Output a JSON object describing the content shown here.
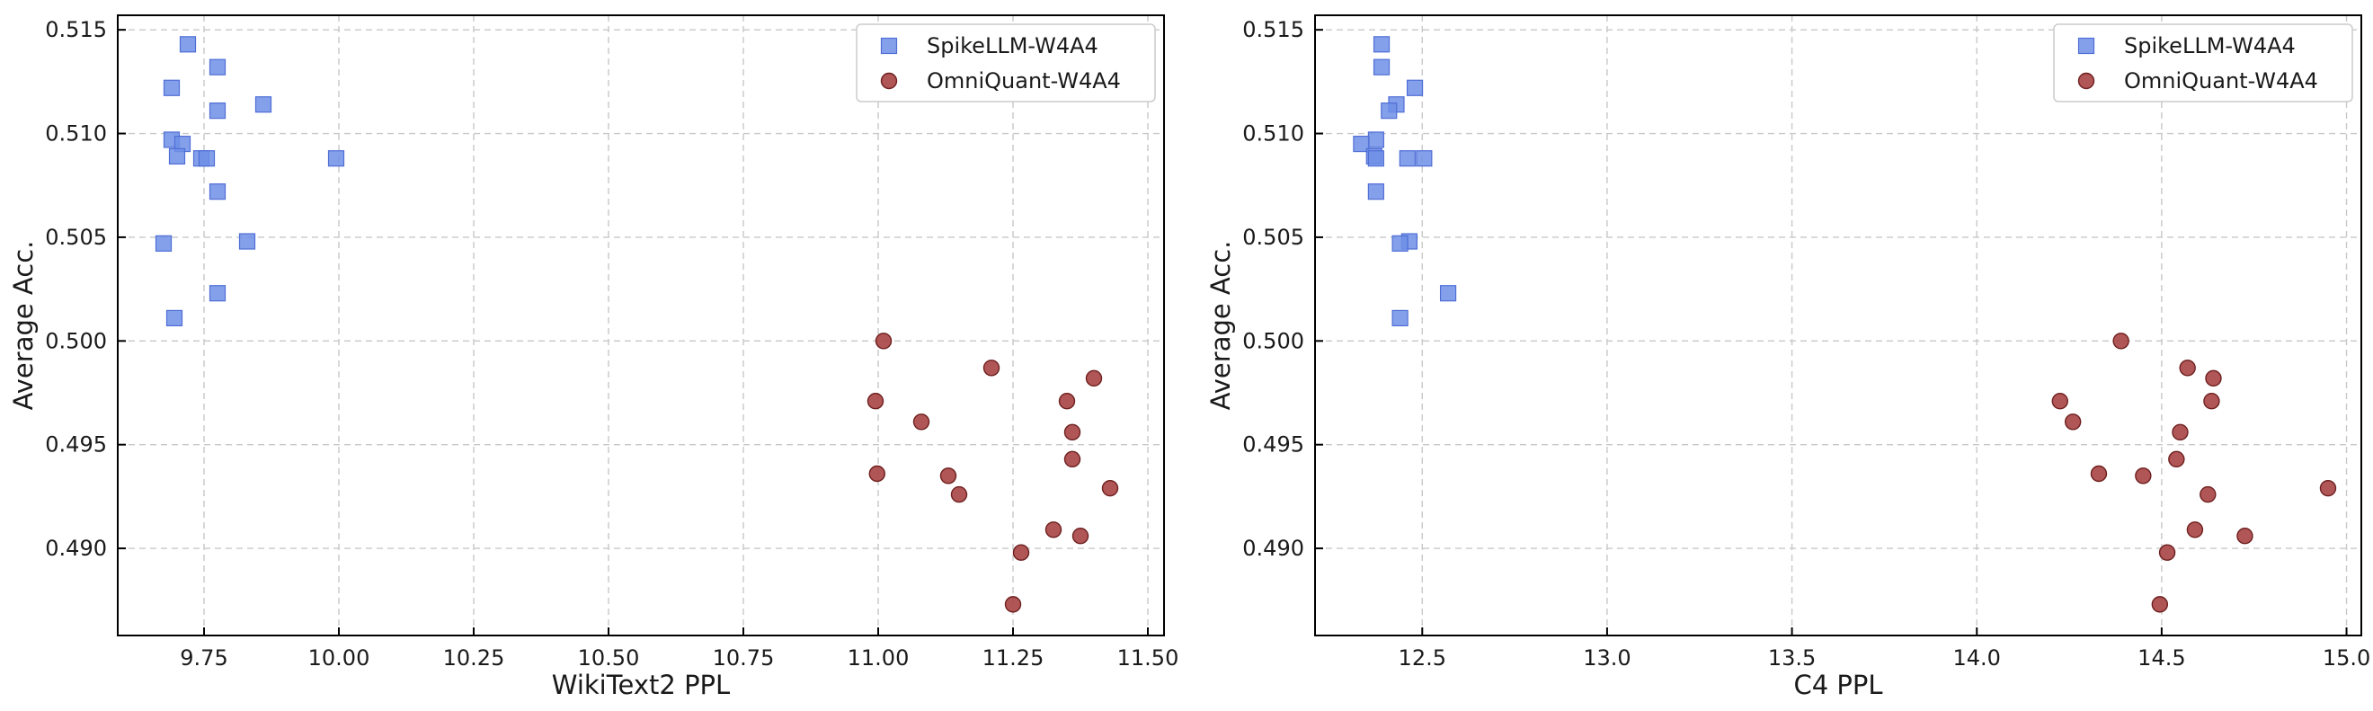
{
  "colors": {
    "square_fill": "#6f8fe6",
    "square_edge": "#4f6ed6",
    "circle_fill": "#a84444",
    "circle_edge": "#6e1f1f"
  },
  "chart_data": [
    {
      "type": "scatter",
      "title": "",
      "xlabel": "WikiText2 PPL",
      "ylabel": "Average Acc.",
      "xlim": [
        9.59,
        11.53
      ],
      "ylim": [
        0.4858,
        0.5157
      ],
      "xticks": [
        "9.75",
        "10.00",
        "10.25",
        "10.50",
        "10.75",
        "11.00",
        "11.25",
        "11.50"
      ],
      "yticks": [
        "0.490",
        "0.495",
        "0.500",
        "0.505",
        "0.510",
        "0.515"
      ],
      "grid": true,
      "legend": "top-right",
      "series": [
        {
          "name": "SpikeLLM-W4A4",
          "marker": "square",
          "x": [
            9.72,
            9.69,
            9.775,
            9.86,
            9.775,
            9.69,
            9.71,
            9.7,
            9.745,
            9.755,
            9.995,
            9.775,
            9.83,
            9.675,
            9.775,
            9.695
          ],
          "y": [
            0.5143,
            0.5122,
            0.5132,
            0.5114,
            0.5111,
            0.5097,
            0.5095,
            0.5089,
            0.5088,
            0.5088,
            0.5088,
            0.5072,
            0.5048,
            0.5047,
            0.5023,
            0.5011
          ]
        },
        {
          "name": "OmniQuant-W4A4",
          "marker": "circle",
          "x": [
            11.01,
            11.21,
            11.4,
            10.995,
            11.35,
            11.08,
            11.36,
            11.36,
            10.998,
            11.13,
            11.15,
            11.43,
            11.325,
            11.375,
            11.265,
            11.25
          ],
          "y": [
            0.5,
            0.4987,
            0.4982,
            0.4971,
            0.4971,
            0.4961,
            0.4956,
            0.4943,
            0.4936,
            0.4935,
            0.4926,
            0.4929,
            0.4909,
            0.4906,
            0.4898,
            0.4873
          ]
        }
      ]
    },
    {
      "type": "scatter",
      "title": "",
      "xlabel": "C4 PPL",
      "ylabel": "Average Acc.",
      "xlim": [
        12.21,
        15.04
      ],
      "ylim": [
        0.4858,
        0.5157
      ],
      "xticks": [
        "12.5",
        "13.0",
        "13.5",
        "14.0",
        "14.5",
        "15.0"
      ],
      "yticks": [
        "0.490",
        "0.495",
        "0.500",
        "0.505",
        "0.510",
        "0.515"
      ],
      "grid": true,
      "legend": "top-right",
      "series": [
        {
          "name": "SpikeLLM-W4A4",
          "marker": "square",
          "x": [
            12.39,
            12.39,
            12.48,
            12.43,
            12.41,
            12.375,
            12.335,
            12.37,
            12.375,
            12.46,
            12.505,
            12.375,
            12.465,
            12.44,
            12.57,
            12.44
          ],
          "y": [
            0.5143,
            0.5132,
            0.5122,
            0.5114,
            0.5111,
            0.5097,
            0.5095,
            0.5089,
            0.5088,
            0.5088,
            0.5088,
            0.5072,
            0.5048,
            0.5047,
            0.5023,
            0.5011
          ]
        },
        {
          "name": "OmniQuant-W4A4",
          "marker": "circle",
          "x": [
            14.39,
            14.57,
            14.64,
            14.225,
            14.635,
            14.26,
            14.55,
            14.54,
            14.33,
            14.45,
            14.625,
            14.95,
            14.59,
            14.725,
            14.515,
            14.495
          ],
          "y": [
            0.5,
            0.4987,
            0.4982,
            0.4971,
            0.4971,
            0.4961,
            0.4956,
            0.4943,
            0.4936,
            0.4935,
            0.4926,
            0.4929,
            0.4909,
            0.4906,
            0.4898,
            0.4873
          ]
        }
      ]
    }
  ]
}
